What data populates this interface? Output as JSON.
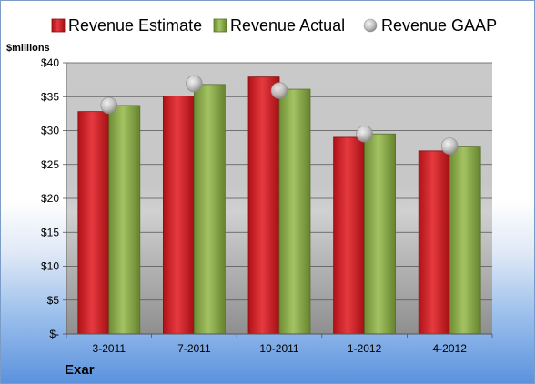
{
  "chart_data": {
    "type": "bar",
    "company": "Exar",
    "units_label": "$millions",
    "categories": [
      "3-2011",
      "7-2011",
      "10-2011",
      "1-2012",
      "4-2012"
    ],
    "series": [
      {
        "name": "Revenue Estimate",
        "kind": "bar",
        "color": "#d8272d",
        "values": [
          32.8,
          35.1,
          37.9,
          29.0,
          27.0
        ]
      },
      {
        "name": "Revenue Actual",
        "kind": "bar",
        "color": "#8fb04c",
        "values": [
          33.7,
          36.8,
          36.1,
          29.5,
          27.7
        ]
      },
      {
        "name": "Revenue GAAP",
        "kind": "marker",
        "color": "#c8c8c8",
        "values": [
          33.7,
          36.9,
          35.9,
          29.5,
          27.7
        ]
      }
    ],
    "ylim": [
      0,
      40
    ],
    "yticks": [
      0,
      5,
      10,
      15,
      20,
      25,
      30,
      35,
      40
    ],
    "ytick_labels": [
      "$-",
      "$5",
      "$10",
      "$15",
      "$20",
      "$25",
      "$30",
      "$35",
      "$40"
    ],
    "grid": true,
    "legend_position": "top"
  }
}
